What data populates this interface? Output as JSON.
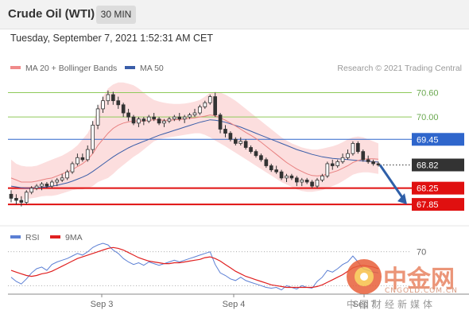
{
  "header": {
    "title": "Crude Oil (WTI)",
    "timeframe": "30 MIN"
  },
  "datetime": "Tuesday, September 7, 2021 1:52:31 AM CET",
  "credit": "Research © 2021 Trading Central",
  "legend": {
    "ma20": {
      "label": "MA 20 + Bollinger Bands",
      "color": "#f08a8a"
    },
    "ma50": {
      "label": "MA 50",
      "color": "#3a5da8"
    }
  },
  "rsi_legend": {
    "rsi": {
      "label": "RSI",
      "color": "#5b7fd4"
    },
    "ma9": {
      "label": "9MA",
      "color": "#e02020"
    }
  },
  "watermark": {
    "brand": "中金网",
    "domain": "CNGOLD.COM.CN",
    "tagline": "中国财经新媒体"
  },
  "chart_data": {
    "type": "candlestick",
    "price_ylim": [
      67.5,
      71.0
    ],
    "levels": [
      {
        "value": 70.6,
        "label": "70.60",
        "color": "#8fca5a",
        "kind": "target"
      },
      {
        "value": 70.0,
        "label": "70.00",
        "color": "#8fca5a",
        "kind": "target"
      },
      {
        "value": 69.45,
        "label": "69.45",
        "color": "#2f66cc",
        "kind": "pivot"
      },
      {
        "value": 68.82,
        "label": "68.82",
        "color": "#333333",
        "kind": "last"
      },
      {
        "value": 68.25,
        "label": "68.25",
        "color": "#e01010",
        "kind": "support"
      },
      {
        "value": 67.85,
        "label": "67.85",
        "color": "#e01010",
        "kind": "support"
      }
    ],
    "x_ticks": [
      "Sep 3",
      "Sep 4",
      "Sep 7"
    ],
    "ohlc": [
      [
        68.1,
        68.2,
        67.9,
        68.0
      ],
      [
        68.0,
        68.1,
        67.85,
        67.95
      ],
      [
        67.95,
        68.05,
        67.8,
        67.9
      ],
      [
        67.9,
        68.2,
        67.85,
        68.15
      ],
      [
        68.15,
        68.3,
        68.1,
        68.25
      ],
      [
        68.25,
        68.35,
        68.2,
        68.3
      ],
      [
        68.3,
        68.4,
        68.2,
        68.35
      ],
      [
        68.35,
        68.4,
        68.25,
        68.3
      ],
      [
        68.3,
        68.45,
        68.25,
        68.4
      ],
      [
        68.4,
        68.5,
        68.3,
        68.45
      ],
      [
        68.45,
        68.6,
        68.4,
        68.5
      ],
      [
        68.5,
        68.7,
        68.45,
        68.65
      ],
      [
        68.65,
        68.9,
        68.6,
        68.85
      ],
      [
        68.85,
        69.1,
        68.8,
        69.0
      ],
      [
        69.0,
        69.1,
        68.9,
        68.95
      ],
      [
        68.95,
        69.3,
        68.9,
        69.2
      ],
      [
        69.2,
        69.9,
        69.1,
        69.8
      ],
      [
        69.8,
        70.3,
        69.7,
        70.2
      ],
      [
        70.2,
        70.5,
        70.1,
        70.4
      ],
      [
        70.4,
        70.65,
        70.3,
        70.55
      ],
      [
        70.55,
        70.62,
        70.3,
        70.4
      ],
      [
        70.4,
        70.5,
        70.2,
        70.3
      ],
      [
        70.3,
        70.35,
        70.0,
        70.1
      ],
      [
        70.1,
        70.2,
        69.9,
        70.0
      ],
      [
        70.0,
        70.05,
        69.8,
        69.85
      ],
      [
        69.85,
        70.0,
        69.75,
        69.95
      ],
      [
        69.95,
        70.0,
        69.8,
        69.9
      ],
      [
        69.9,
        70.05,
        69.85,
        70.0
      ],
      [
        70.0,
        70.1,
        69.9,
        69.95
      ],
      [
        69.95,
        70.0,
        69.8,
        69.85
      ],
      [
        69.85,
        69.95,
        69.75,
        69.9
      ],
      [
        69.9,
        70.0,
        69.85,
        69.95
      ],
      [
        69.95,
        70.05,
        69.9,
        70.0
      ],
      [
        70.0,
        70.1,
        69.9,
        69.95
      ],
      [
        69.95,
        70.05,
        69.85,
        70.0
      ],
      [
        70.0,
        70.1,
        69.95,
        70.05
      ],
      [
        70.05,
        70.2,
        70.0,
        70.1
      ],
      [
        70.1,
        70.3,
        70.05,
        70.25
      ],
      [
        70.25,
        70.4,
        70.2,
        70.35
      ],
      [
        70.35,
        70.55,
        70.3,
        70.5
      ],
      [
        70.5,
        70.6,
        70.0,
        70.05
      ],
      [
        70.05,
        70.1,
        69.6,
        69.7
      ],
      [
        69.7,
        69.8,
        69.5,
        69.6
      ],
      [
        69.6,
        69.65,
        69.4,
        69.45
      ],
      [
        69.45,
        69.5,
        69.3,
        69.35
      ],
      [
        69.35,
        69.5,
        69.3,
        69.4
      ],
      [
        69.4,
        69.45,
        69.2,
        69.25
      ],
      [
        69.25,
        69.3,
        69.1,
        69.15
      ],
      [
        69.15,
        69.2,
        69.0,
        69.05
      ],
      [
        69.05,
        69.1,
        68.9,
        68.95
      ],
      [
        68.95,
        69.0,
        68.75,
        68.8
      ],
      [
        68.8,
        68.85,
        68.65,
        68.7
      ],
      [
        68.7,
        68.8,
        68.6,
        68.65
      ],
      [
        68.65,
        68.7,
        68.45,
        68.5
      ],
      [
        68.5,
        68.6,
        68.4,
        68.55
      ],
      [
        68.55,
        68.6,
        68.45,
        68.5
      ],
      [
        68.5,
        68.55,
        68.3,
        68.4
      ],
      [
        68.4,
        68.5,
        68.3,
        68.45
      ],
      [
        68.45,
        68.5,
        68.35,
        68.4
      ],
      [
        68.4,
        68.45,
        68.25,
        68.3
      ],
      [
        68.3,
        68.5,
        68.25,
        68.45
      ],
      [
        68.45,
        68.6,
        68.4,
        68.55
      ],
      [
        68.55,
        68.9,
        68.5,
        68.85
      ],
      [
        68.85,
        68.95,
        68.7,
        68.8
      ],
      [
        68.8,
        68.95,
        68.75,
        68.9
      ],
      [
        68.9,
        69.1,
        68.85,
        69.0
      ],
      [
        69.0,
        69.2,
        68.95,
        69.1
      ],
      [
        69.1,
        69.4,
        69.05,
        69.35
      ],
      [
        69.35,
        69.4,
        69.1,
        69.15
      ],
      [
        69.15,
        69.2,
        68.9,
        68.95
      ],
      [
        68.95,
        69.05,
        68.85,
        68.9
      ],
      [
        68.9,
        68.95,
        68.8,
        68.85
      ],
      [
        68.85,
        68.9,
        68.78,
        68.82
      ]
    ],
    "ma20": [
      68.5,
      68.45,
      68.4,
      68.4,
      68.4,
      68.42,
      68.45,
      68.48,
      68.5,
      68.55,
      68.6,
      68.65,
      68.7,
      68.78,
      68.85,
      68.95,
      69.1,
      69.3,
      69.45,
      69.6,
      69.72,
      69.8,
      69.85,
      69.88,
      69.9,
      69.9,
      69.9,
      69.92,
      69.93,
      69.93,
      69.92,
      69.92,
      69.93,
      69.94,
      69.95,
      69.97,
      69.98,
      70.0,
      70.02,
      70.05,
      70.03,
      69.98,
      69.92,
      69.85,
      69.78,
      69.7,
      69.62,
      69.55,
      69.47,
      69.38,
      69.28,
      69.18,
      69.08,
      68.98,
      68.88,
      68.8,
      68.72,
      68.66,
      68.6,
      68.56,
      68.55,
      68.56,
      68.6,
      68.64,
      68.68,
      68.74,
      68.8,
      68.88,
      68.93,
      68.96,
      68.97,
      68.97,
      68.96
    ],
    "ma50": [
      68.3,
      68.28,
      68.26,
      68.25,
      68.25,
      68.26,
      68.27,
      68.28,
      68.3,
      68.32,
      68.35,
      68.38,
      68.42,
      68.47,
      68.52,
      68.58,
      68.66,
      68.75,
      68.84,
      68.93,
      69.02,
      69.1,
      69.17,
      69.24,
      69.3,
      69.35,
      69.4,
      69.45,
      69.5,
      69.55,
      69.59,
      69.63,
      69.67,
      69.71,
      69.75,
      69.79,
      69.83,
      69.87,
      69.9,
      69.93,
      69.92,
      69.9,
      69.87,
      69.83,
      69.79,
      69.75,
      69.7,
      69.65,
      69.6,
      69.55,
      69.5,
      69.45,
      69.4,
      69.35,
      69.3,
      69.25,
      69.2,
      69.16,
      69.12,
      69.08,
      69.05,
      69.02,
      69.0,
      68.98,
      68.97,
      68.96,
      68.95,
      68.94,
      68.93,
      68.92,
      68.91,
      68.9,
      68.89
    ],
    "bb_upper": [
      68.95,
      68.85,
      68.8,
      68.78,
      68.78,
      68.8,
      68.85,
      68.9,
      68.95,
      69.0,
      69.05,
      69.12,
      69.2,
      69.3,
      69.45,
      69.6,
      69.85,
      70.2,
      70.5,
      70.7,
      70.8,
      70.85,
      70.85,
      70.82,
      70.78,
      70.7,
      70.6,
      70.5,
      70.42,
      70.38,
      70.35,
      70.33,
      70.32,
      70.32,
      70.33,
      70.35,
      70.38,
      70.42,
      70.5,
      70.6,
      70.62,
      70.6,
      70.55,
      70.48,
      70.4,
      70.3,
      70.2,
      70.1,
      70.0,
      69.9,
      69.8,
      69.7,
      69.6,
      69.5,
      69.42,
      69.35,
      69.3,
      69.25,
      69.22,
      69.2,
      69.2,
      69.22,
      69.25,
      69.28,
      69.32,
      69.38,
      69.45,
      69.5,
      69.52,
      69.5,
      69.45,
      69.4,
      69.35
    ],
    "bb_lower": [
      68.05,
      68.0,
      67.98,
      67.98,
      68.0,
      68.02,
      68.05,
      68.06,
      68.06,
      68.08,
      68.12,
      68.16,
      68.2,
      68.22,
      68.22,
      68.25,
      68.3,
      68.4,
      68.45,
      68.5,
      68.6,
      68.72,
      68.82,
      68.92,
      69.02,
      69.1,
      69.2,
      69.3,
      69.4,
      69.45,
      69.48,
      69.5,
      69.52,
      69.54,
      69.56,
      69.58,
      69.6,
      69.6,
      69.56,
      69.5,
      69.42,
      69.35,
      69.28,
      69.2,
      69.12,
      69.04,
      68.96,
      68.88,
      68.8,
      68.72,
      68.64,
      68.56,
      68.48,
      68.4,
      68.34,
      68.28,
      68.22,
      68.18,
      68.16,
      68.16,
      68.18,
      68.2,
      68.25,
      68.3,
      68.35,
      68.42,
      68.5,
      68.58,
      68.62,
      68.64,
      68.64,
      68.62,
      68.6
    ],
    "forecast": {
      "from": 68.82,
      "to": 67.85
    },
    "rsi_ylim": [
      20,
      80
    ],
    "rsi_level": {
      "value": 70,
      "label": "70"
    },
    "rsi": [
      40,
      35,
      32,
      38,
      45,
      50,
      52,
      48,
      55,
      58,
      60,
      62,
      65,
      68,
      66,
      70,
      75,
      78,
      80,
      78,
      72,
      68,
      62,
      58,
      55,
      57,
      54,
      58,
      56,
      54,
      56,
      58,
      60,
      58,
      60,
      62,
      64,
      66,
      68,
      70,
      55,
      45,
      42,
      38,
      36,
      40,
      36,
      34,
      32,
      30,
      28,
      27,
      28,
      25,
      30,
      28,
      26,
      30,
      28,
      27,
      35,
      40,
      48,
      46,
      50,
      55,
      58,
      65,
      58,
      50,
      48,
      46,
      45
    ],
    "rsi_ma": [
      48,
      46,
      44,
      42,
      41,
      42,
      44,
      45,
      47,
      50,
      53,
      56,
      59,
      62,
      64,
      66,
      68,
      70,
      72,
      74,
      75,
      74,
      72,
      69,
      66,
      63,
      61,
      59,
      58,
      57,
      56,
      56,
      57,
      57,
      58,
      59,
      60,
      61,
      63,
      64,
      62,
      59,
      55,
      51,
      47,
      44,
      41,
      39,
      37,
      35,
      33,
      31,
      30,
      29,
      28,
      28,
      28,
      28,
      28,
      28,
      29,
      31,
      34,
      37,
      40,
      43,
      47,
      51,
      53,
      54,
      53,
      52,
      50
    ]
  }
}
